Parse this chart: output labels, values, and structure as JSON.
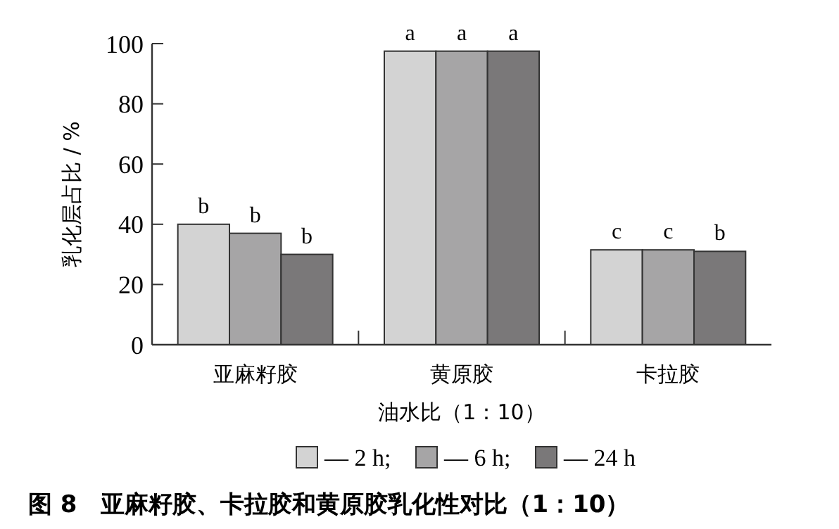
{
  "chart_data": {
    "type": "bar",
    "xlabel": "油水比（1：10）",
    "ylabel": "乳化层占比 / %",
    "categories": [
      "亚麻籽胶",
      "黄原胶",
      "卡拉胶"
    ],
    "series": [
      {
        "name": "— 2 h;",
        "color": "#d3d3d3",
        "values": [
          40,
          97.5,
          31.5
        ],
        "value_labels": [
          "b",
          "a",
          "c"
        ]
      },
      {
        "name": "— 6 h;",
        "color": "#a6a5a6",
        "values": [
          37,
          97.5,
          31.5
        ],
        "value_labels": [
          "b",
          "a",
          "c"
        ]
      },
      {
        "name": "— 24 h",
        "color": "#7a7879",
        "values": [
          30,
          97.5,
          31
        ],
        "value_labels": [
          "b",
          "a",
          "b"
        ]
      }
    ],
    "ylim": [
      0,
      100
    ],
    "yticks": [
      0,
      20,
      40,
      60,
      80,
      100
    ],
    "grid": false,
    "legend": "bottom",
    "annotations": [
      "图 8　亚麻籽胶、卡拉胶和黄原胶乳化性对比（1：10）"
    ]
  }
}
